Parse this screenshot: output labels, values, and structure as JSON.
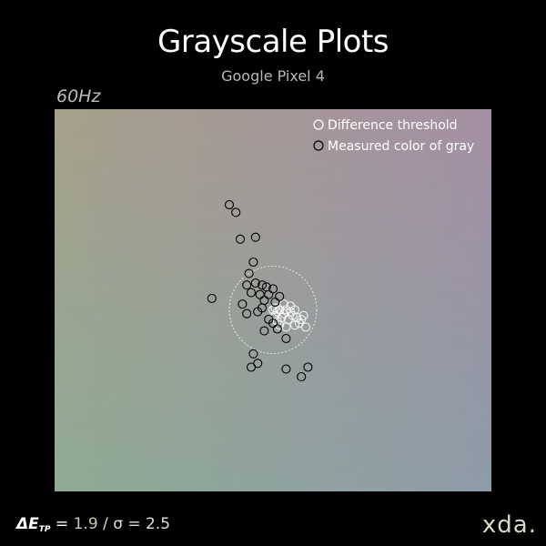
{
  "header": {
    "title": "Grayscale Plots",
    "subtitle": "Google Pixel 4",
    "refresh_rate": "60Hz"
  },
  "legend": {
    "threshold_label": "Difference threshold",
    "measured_label": "Measured color of gray",
    "placement": "top-right"
  },
  "metrics": {
    "delta_symbol": "ΔE",
    "delta_subscript": "TP",
    "equals": " = ",
    "delta_value": "1.9",
    "separator": " /  ",
    "sigma_text": "σ = 2.5"
  },
  "brand": {
    "logo_text": "xda."
  },
  "colors": {
    "background": "#000000",
    "gradient_top_left": "#a6a08a",
    "gradient_top_right": "#a58fa4",
    "gradient_bottom_left": "#8fab94",
    "gradient_bottom_right": "#8e9ca9",
    "marker_dark": "#000000",
    "marker_light": "#ffffff"
  },
  "chart_data": {
    "type": "scatter",
    "title": "Grayscale Plots",
    "subtitle": "Google Pixel 4",
    "xlim": [
      -1,
      1
    ],
    "ylim": [
      -1,
      1
    ],
    "grid": false,
    "series": [
      {
        "name": "Difference threshold",
        "marker": "white-circle-outline",
        "points": [
          [
            0.0,
            -0.05
          ],
          [
            0.01,
            -0.04
          ],
          [
            0.02,
            -0.06
          ],
          [
            0.03,
            -0.05
          ],
          [
            0.05,
            -0.07
          ],
          [
            0.06,
            -0.05
          ],
          [
            0.08,
            -0.06
          ],
          [
            0.1,
            -0.05
          ],
          [
            0.09,
            -0.08
          ],
          [
            0.07,
            -0.1
          ],
          [
            0.04,
            -0.09
          ],
          [
            0.02,
            -0.11
          ],
          [
            0.11,
            -0.09
          ],
          [
            0.12,
            -0.12
          ],
          [
            0.1,
            -0.13
          ],
          [
            0.06,
            -0.14
          ],
          [
            0.03,
            -0.13
          ],
          [
            0.13,
            -0.1
          ],
          [
            0.14,
            -0.08
          ],
          [
            0.08,
            -0.03
          ],
          [
            0.05,
            -0.02
          ],
          [
            0.01,
            -0.08
          ],
          [
            0.15,
            -0.14
          ]
        ]
      },
      {
        "name": "Measured color of gray",
        "marker": "black-circle-outline",
        "points": [
          [
            -0.2,
            0.5
          ],
          [
            -0.17,
            0.46
          ],
          [
            -0.15,
            0.32
          ],
          [
            -0.08,
            0.33
          ],
          [
            -0.09,
            0.2
          ],
          [
            -0.11,
            0.14
          ],
          [
            -0.12,
            0.08
          ],
          [
            -0.1,
            0.04
          ],
          [
            -0.08,
            0.09
          ],
          [
            -0.05,
            0.08
          ],
          [
            -0.03,
            0.07
          ],
          [
            -0.06,
            0.03
          ],
          [
            -0.04,
            0.0
          ],
          [
            -0.02,
            0.03
          ],
          [
            0.0,
            0.06
          ],
          [
            -0.28,
            0.01
          ],
          [
            -0.14,
            -0.02
          ],
          [
            -0.12,
            -0.07
          ],
          [
            -0.07,
            -0.06
          ],
          [
            -0.05,
            -0.04
          ],
          [
            0.01,
            -0.01
          ],
          [
            0.03,
            0.02
          ],
          [
            -0.02,
            -0.1
          ],
          [
            0.02,
            -0.15
          ],
          [
            0.06,
            -0.2
          ],
          [
            -0.04,
            -0.16
          ],
          [
            0.0,
            -0.12
          ],
          [
            -0.09,
            -0.28
          ],
          [
            -0.07,
            -0.33
          ],
          [
            -0.1,
            -0.35
          ],
          [
            0.06,
            -0.36
          ],
          [
            0.13,
            -0.4
          ],
          [
            0.16,
            -0.35
          ]
        ]
      }
    ],
    "threshold_circle": {
      "cx": 0.0,
      "cy": -0.05,
      "r": 0.2
    }
  }
}
